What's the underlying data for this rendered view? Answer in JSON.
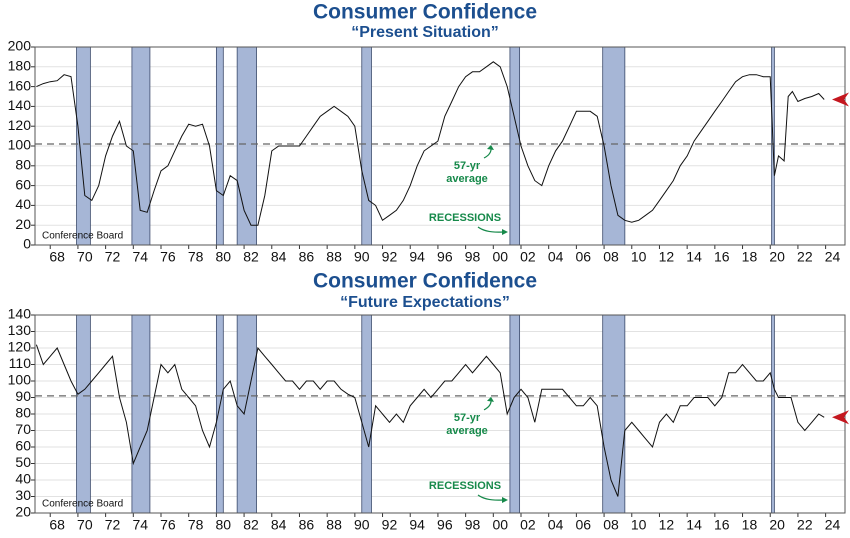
{
  "chart_data": [
    {
      "type": "line",
      "title": "Consumer Confidence",
      "subtitle": "“Present Situation”",
      "xlim": [
        1966.9,
        2025.4
      ],
      "ylim": [
        0,
        200
      ],
      "yticks": [
        0,
        20,
        40,
        60,
        80,
        100,
        120,
        140,
        160,
        180,
        200
      ],
      "xticks": [
        {
          "value": 1968,
          "label": "68"
        },
        {
          "value": 1970,
          "label": "70"
        },
        {
          "value": 1972,
          "label": "72"
        },
        {
          "value": 1974,
          "label": "74"
        },
        {
          "value": 1976,
          "label": "76"
        },
        {
          "value": 1978,
          "label": "78"
        },
        {
          "value": 1980,
          "label": "80"
        },
        {
          "value": 1982,
          "label": "82"
        },
        {
          "value": 1984,
          "label": "84"
        },
        {
          "value": 1986,
          "label": "86"
        },
        {
          "value": 1988,
          "label": "88"
        },
        {
          "value": 1990,
          "label": "90"
        },
        {
          "value": 1992,
          "label": "92"
        },
        {
          "value": 1994,
          "label": "94"
        },
        {
          "value": 1996,
          "label": "96"
        },
        {
          "value": 1998,
          "label": "98"
        },
        {
          "value": 2000,
          "label": "00"
        },
        {
          "value": 2002,
          "label": "02"
        },
        {
          "value": 2004,
          "label": "04"
        },
        {
          "value": 2006,
          "label": "06"
        },
        {
          "value": 2008,
          "label": "08"
        },
        {
          "value": 2010,
          "label": "10"
        },
        {
          "value": 2012,
          "label": "12"
        },
        {
          "value": 2014,
          "label": "14"
        },
        {
          "value": 2016,
          "label": "16"
        },
        {
          "value": 2018,
          "label": "18"
        },
        {
          "value": 2020,
          "label": "20"
        },
        {
          "value": 2022,
          "label": "22"
        },
        {
          "value": 2024,
          "label": "24"
        }
      ],
      "grid": true,
      "color": "#111111",
      "x": [
        1967,
        1967.5,
        1968,
        1968.5,
        1969,
        1969.5,
        1970,
        1970.5,
        1971,
        1971.5,
        1972,
        1972.5,
        1973,
        1973.5,
        1974,
        1974.5,
        1975,
        1975.5,
        1976,
        1976.5,
        1977,
        1977.5,
        1978,
        1978.5,
        1979,
        1979.5,
        1980,
        1980.5,
        1981,
        1981.5,
        1982,
        1982.5,
        1983,
        1983.5,
        1984,
        1984.5,
        1985,
        1985.5,
        1986,
        1986.5,
        1987,
        1987.5,
        1988,
        1988.5,
        1989,
        1989.5,
        1990,
        1990.5,
        1991,
        1991.5,
        1992,
        1992.5,
        1993,
        1993.5,
        1994,
        1994.5,
        1995,
        1995.5,
        1996,
        1996.5,
        1997,
        1997.5,
        1998,
        1998.5,
        1999,
        1999.5,
        2000,
        2000.5,
        2001,
        2001.5,
        2002,
        2002.5,
        2003,
        2003.5,
        2004,
        2004.5,
        2005,
        2005.5,
        2006,
        2006.5,
        2007,
        2007.5,
        2008,
        2008.5,
        2009,
        2009.5,
        2010,
        2010.5,
        2011,
        2011.5,
        2012,
        2012.5,
        2013,
        2013.5,
        2014,
        2014.5,
        2015,
        2015.5,
        2016,
        2016.5,
        2017,
        2017.5,
        2018,
        2018.5,
        2019,
        2019.5,
        2020,
        2020.3,
        2020.6,
        2021,
        2021.3,
        2021.6,
        2022,
        2022.5,
        2023,
        2023.5,
        2023.9
      ],
      "values": [
        160,
        163,
        165,
        166,
        172,
        170,
        120,
        50,
        45,
        60,
        90,
        110,
        125,
        100,
        95,
        35,
        33,
        55,
        75,
        80,
        95,
        110,
        122,
        120,
        122,
        100,
        55,
        50,
        70,
        65,
        35,
        20,
        20,
        50,
        95,
        100,
        100,
        100,
        100,
        110,
        120,
        130,
        135,
        140,
        135,
        130,
        120,
        75,
        45,
        40,
        25,
        30,
        35,
        45,
        60,
        80,
        95,
        100,
        105,
        130,
        145,
        160,
        170,
        175,
        175,
        180,
        185,
        180,
        160,
        130,
        100,
        80,
        65,
        60,
        80,
        95,
        105,
        120,
        135,
        135,
        135,
        130,
        100,
        60,
        30,
        25,
        23,
        25,
        30,
        35,
        45,
        55,
        65,
        80,
        90,
        105,
        115,
        125,
        135,
        145,
        155,
        165,
        170,
        172,
        172,
        170,
        170,
        70,
        90,
        85,
        150,
        155,
        145,
        148,
        150,
        153,
        147
      ],
      "average": 102,
      "average_label": [
        "57-yr",
        "average"
      ],
      "recessions": [
        [
          1969.9,
          1970.9
        ],
        [
          1973.9,
          1975.2
        ],
        [
          1980.0,
          1980.5
        ],
        [
          1981.5,
          1982.9
        ],
        [
          1990.5,
          1991.2
        ],
        [
          2001.2,
          2001.9
        ],
        [
          2007.9,
          2009.5
        ],
        [
          2020.1,
          2020.3
        ]
      ],
      "recessions_label": "RECESSIONS",
      "source": "Conference Board"
    },
    {
      "type": "line",
      "title": "Consumer Confidence",
      "subtitle": "“Future Expectations”",
      "xlim": [
        1966.9,
        2025.4
      ],
      "ylim": [
        20,
        140
      ],
      "yticks": [
        20,
        30,
        40,
        50,
        60,
        70,
        80,
        90,
        100,
        110,
        120,
        130,
        140
      ],
      "xticks": [
        {
          "value": 1968,
          "label": "68"
        },
        {
          "value": 1970,
          "label": "70"
        },
        {
          "value": 1972,
          "label": "72"
        },
        {
          "value": 1974,
          "label": "74"
        },
        {
          "value": 1976,
          "label": "76"
        },
        {
          "value": 1978,
          "label": "78"
        },
        {
          "value": 1980,
          "label": "80"
        },
        {
          "value": 1982,
          "label": "82"
        },
        {
          "value": 1984,
          "label": "84"
        },
        {
          "value": 1986,
          "label": "86"
        },
        {
          "value": 1988,
          "label": "88"
        },
        {
          "value": 1990,
          "label": "90"
        },
        {
          "value": 1992,
          "label": "92"
        },
        {
          "value": 1994,
          "label": "94"
        },
        {
          "value": 1996,
          "label": "96"
        },
        {
          "value": 1998,
          "label": "98"
        },
        {
          "value": 2000,
          "label": "00"
        },
        {
          "value": 2002,
          "label": "02"
        },
        {
          "value": 2004,
          "label": "04"
        },
        {
          "value": 2006,
          "label": "06"
        },
        {
          "value": 2008,
          "label": "08"
        },
        {
          "value": 2010,
          "label": "10"
        },
        {
          "value": 2012,
          "label": "12"
        },
        {
          "value": 2014,
          "label": "14"
        },
        {
          "value": 2016,
          "label": "16"
        },
        {
          "value": 2018,
          "label": "18"
        },
        {
          "value": 2020,
          "label": "20"
        },
        {
          "value": 2022,
          "label": "22"
        },
        {
          "value": 2024,
          "label": "24"
        }
      ],
      "grid": true,
      "color": "#111111",
      "x": [
        1967,
        1967.5,
        1968,
        1968.5,
        1969,
        1969.5,
        1970,
        1970.5,
        1971,
        1971.5,
        1972,
        1972.5,
        1973,
        1973.5,
        1974,
        1974.5,
        1975,
        1975.5,
        1976,
        1976.5,
        1977,
        1977.5,
        1978,
        1978.5,
        1979,
        1979.5,
        1980,
        1980.5,
        1981,
        1981.5,
        1982,
        1982.5,
        1983,
        1983.5,
        1984,
        1984.5,
        1985,
        1985.5,
        1986,
        1986.5,
        1987,
        1987.5,
        1988,
        1988.5,
        1989,
        1989.5,
        1990,
        1990.5,
        1991,
        1991.5,
        1992,
        1992.5,
        1993,
        1993.5,
        1994,
        1994.5,
        1995,
        1995.5,
        1996,
        1996.5,
        1997,
        1997.5,
        1998,
        1998.5,
        1999,
        1999.5,
        2000,
        2000.5,
        2001,
        2001.5,
        2002,
        2002.5,
        2003,
        2003.5,
        2004,
        2004.5,
        2005,
        2005.5,
        2006,
        2006.5,
        2007,
        2007.5,
        2008,
        2008.5,
        2009,
        2009.5,
        2010,
        2010.5,
        2011,
        2011.5,
        2012,
        2012.5,
        2013,
        2013.5,
        2014,
        2014.5,
        2015,
        2015.5,
        2016,
        2016.5,
        2017,
        2017.5,
        2018,
        2018.5,
        2019,
        2019.5,
        2020,
        2020.3,
        2020.6,
        2021,
        2021.5,
        2022,
        2022.5,
        2023,
        2023.5,
        2023.9
      ],
      "values": [
        122,
        110,
        115,
        120,
        110,
        100,
        92,
        95,
        100,
        105,
        110,
        115,
        90,
        75,
        50,
        60,
        70,
        90,
        110,
        105,
        110,
        95,
        90,
        85,
        70,
        60,
        75,
        95,
        100,
        85,
        80,
        100,
        120,
        115,
        110,
        105,
        100,
        100,
        95,
        100,
        100,
        95,
        100,
        100,
        95,
        92,
        90,
        75,
        60,
        85,
        80,
        75,
        80,
        75,
        85,
        90,
        95,
        90,
        95,
        100,
        100,
        105,
        110,
        105,
        110,
        115,
        110,
        105,
        80,
        90,
        95,
        90,
        75,
        95,
        95,
        95,
        95,
        90,
        85,
        85,
        90,
        85,
        60,
        40,
        30,
        70,
        75,
        70,
        65,
        60,
        75,
        80,
        75,
        85,
        85,
        90,
        90,
        90,
        85,
        90,
        105,
        105,
        110,
        105,
        100,
        100,
        105,
        95,
        90,
        90,
        90,
        75,
        70,
        75,
        80,
        78
      ],
      "average": 91,
      "average_label": [
        "57-yr",
        "average"
      ],
      "recessions": [
        [
          1969.9,
          1970.9
        ],
        [
          1973.9,
          1975.2
        ],
        [
          1980.0,
          1980.5
        ],
        [
          1981.5,
          1982.9
        ],
        [
          1990.5,
          1991.2
        ],
        [
          2001.2,
          2001.9
        ],
        [
          2007.9,
          2009.5
        ],
        [
          2020.1,
          2020.3
        ]
      ],
      "recessions_label": "RECESSIONS",
      "source": "Conference Board"
    }
  ]
}
